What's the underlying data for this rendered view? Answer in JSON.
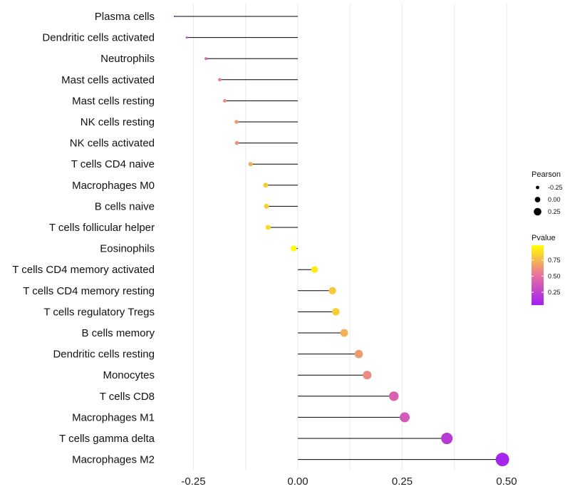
{
  "chart_data": {
    "type": "lollipop",
    "categories": [
      "Plasma cells",
      "Dendritic cells activated",
      "Neutrophils",
      "Mast cells activated",
      "Mast cells resting",
      "NK cells resting",
      "NK cells activated",
      "T cells CD4 naive",
      "Macrophages M0",
      "B cells naive",
      "T cells follicular helper",
      "Eosinophils",
      "T cells CD4 memory activated",
      "T cells CD4 memory resting",
      "T cells regulatory  Tregs",
      "B cells memory",
      "Dendritic cells resting",
      "Monocytes",
      "T cells CD8",
      "Macrophages M1",
      "T cells gamma delta",
      "Macrophages M2"
    ],
    "pearson": [
      -0.295,
      -0.266,
      -0.22,
      -0.187,
      -0.175,
      -0.147,
      -0.146,
      -0.113,
      -0.077,
      -0.075,
      -0.071,
      -0.01,
      0.04,
      0.083,
      0.091,
      0.111,
      0.146,
      0.166,
      0.23,
      0.256,
      0.357,
      0.49
    ],
    "pvalue": [
      0.12,
      0.3,
      0.45,
      0.55,
      0.6,
      0.65,
      0.62,
      0.72,
      0.82,
      0.82,
      0.85,
      0.97,
      0.92,
      0.8,
      0.82,
      0.72,
      0.65,
      0.6,
      0.42,
      0.38,
      0.2,
      0.08
    ],
    "xlim": [
      -0.3,
      0.5
    ],
    "x_ticks": [
      -0.25,
      0.0,
      0.25,
      0.5
    ],
    "x_tick_labels": [
      "-0.25",
      "0.00",
      "0.25",
      "0.50"
    ],
    "xlabel": "",
    "ylabel": "",
    "grid": true,
    "legend_position": "right",
    "size_legend": {
      "title": "Pearson",
      "values": [
        -0.25,
        0.0,
        0.25
      ],
      "labels": [
        "-0.25",
        "0.00",
        "0.25"
      ]
    },
    "color_legend": {
      "title": "Pvalue",
      "low_color": "#a020f0",
      "high_color": "#ffff00",
      "range": [
        0.05,
        0.98
      ],
      "ticks": [
        0.25,
        0.5,
        0.75
      ],
      "tick_labels": [
        "0.25",
        "0.50",
        "0.75"
      ]
    }
  }
}
